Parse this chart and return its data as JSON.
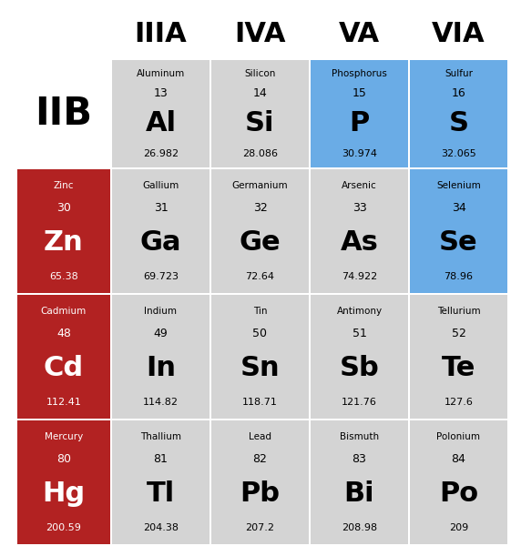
{
  "background_color": "#ffffff",
  "red_color": "#b22222",
  "blue_color": "#6aace6",
  "light_gray": "#d4d4d4",
  "col_headers": [
    "IIIA",
    "IVA",
    "VA",
    "VIA"
  ],
  "elements": [
    {
      "name": "Aluminum",
      "number": "13",
      "symbol": "Al",
      "mass": "26.982",
      "row": 0,
      "col": 0,
      "bg": "#d4d4d4",
      "text_color": "#000000"
    },
    {
      "name": "Silicon",
      "number": "14",
      "symbol": "Si",
      "mass": "28.086",
      "row": 0,
      "col": 1,
      "bg": "#d4d4d4",
      "text_color": "#000000"
    },
    {
      "name": "Phosphorus",
      "number": "15",
      "symbol": "P",
      "mass": "30.974",
      "row": 0,
      "col": 2,
      "bg": "#6aace6",
      "text_color": "#000000"
    },
    {
      "name": "Sulfur",
      "number": "16",
      "symbol": "S",
      "mass": "32.065",
      "row": 0,
      "col": 3,
      "bg": "#6aace6",
      "text_color": "#000000"
    },
    {
      "name": "Zinc",
      "number": "30",
      "symbol": "Zn",
      "mass": "65.38",
      "row": 1,
      "col": -1,
      "bg": "#b22222",
      "text_color": "#ffffff"
    },
    {
      "name": "Gallium",
      "number": "31",
      "symbol": "Ga",
      "mass": "69.723",
      "row": 1,
      "col": 0,
      "bg": "#d4d4d4",
      "text_color": "#000000"
    },
    {
      "name": "Germanium",
      "number": "32",
      "symbol": "Ge",
      "mass": "72.64",
      "row": 1,
      "col": 1,
      "bg": "#d4d4d4",
      "text_color": "#000000"
    },
    {
      "name": "Arsenic",
      "number": "33",
      "symbol": "As",
      "mass": "74.922",
      "row": 1,
      "col": 2,
      "bg": "#d4d4d4",
      "text_color": "#000000"
    },
    {
      "name": "Selenium",
      "number": "34",
      "symbol": "Se",
      "mass": "78.96",
      "row": 1,
      "col": 3,
      "bg": "#6aace6",
      "text_color": "#000000"
    },
    {
      "name": "Cadmium",
      "number": "48",
      "symbol": "Cd",
      "mass": "112.41",
      "row": 2,
      "col": -1,
      "bg": "#b22222",
      "text_color": "#ffffff"
    },
    {
      "name": "Indium",
      "number": "49",
      "symbol": "In",
      "mass": "114.82",
      "row": 2,
      "col": 0,
      "bg": "#d4d4d4",
      "text_color": "#000000"
    },
    {
      "name": "Tin",
      "number": "50",
      "symbol": "Sn",
      "mass": "118.71",
      "row": 2,
      "col": 1,
      "bg": "#d4d4d4",
      "text_color": "#000000"
    },
    {
      "name": "Antimony",
      "number": "51",
      "symbol": "Sb",
      "mass": "121.76",
      "row": 2,
      "col": 2,
      "bg": "#d4d4d4",
      "text_color": "#000000"
    },
    {
      "name": "Tellurium",
      "number": "52",
      "symbol": "Te",
      "mass": "127.6",
      "row": 2,
      "col": 3,
      "bg": "#d4d4d4",
      "text_color": "#000000"
    },
    {
      "name": "Mercury",
      "number": "80",
      "symbol": "Hg",
      "mass": "200.59",
      "row": 3,
      "col": -1,
      "bg": "#b22222",
      "text_color": "#ffffff"
    },
    {
      "name": "Thallium",
      "number": "81",
      "symbol": "Tl",
      "mass": "204.38",
      "row": 3,
      "col": 0,
      "bg": "#d4d4d4",
      "text_color": "#000000"
    },
    {
      "name": "Lead",
      "number": "82",
      "symbol": "Pb",
      "mass": "207.2",
      "row": 3,
      "col": 1,
      "bg": "#d4d4d4",
      "text_color": "#000000"
    },
    {
      "name": "Bismuth",
      "number": "83",
      "symbol": "Bi",
      "mass": "208.98",
      "row": 3,
      "col": 2,
      "bg": "#d4d4d4",
      "text_color": "#000000"
    },
    {
      "name": "Polonium",
      "number": "84",
      "symbol": "Po",
      "mass": "209",
      "row": 3,
      "col": 3,
      "bg": "#d4d4d4",
      "text_color": "#000000"
    }
  ],
  "iib_label": "IIB",
  "iib_fontsize": 30,
  "col_header_fontsize": 22,
  "name_fontsize": 7.5,
  "number_fontsize": 9,
  "symbol_fontsize": 22,
  "mass_fontsize": 8
}
